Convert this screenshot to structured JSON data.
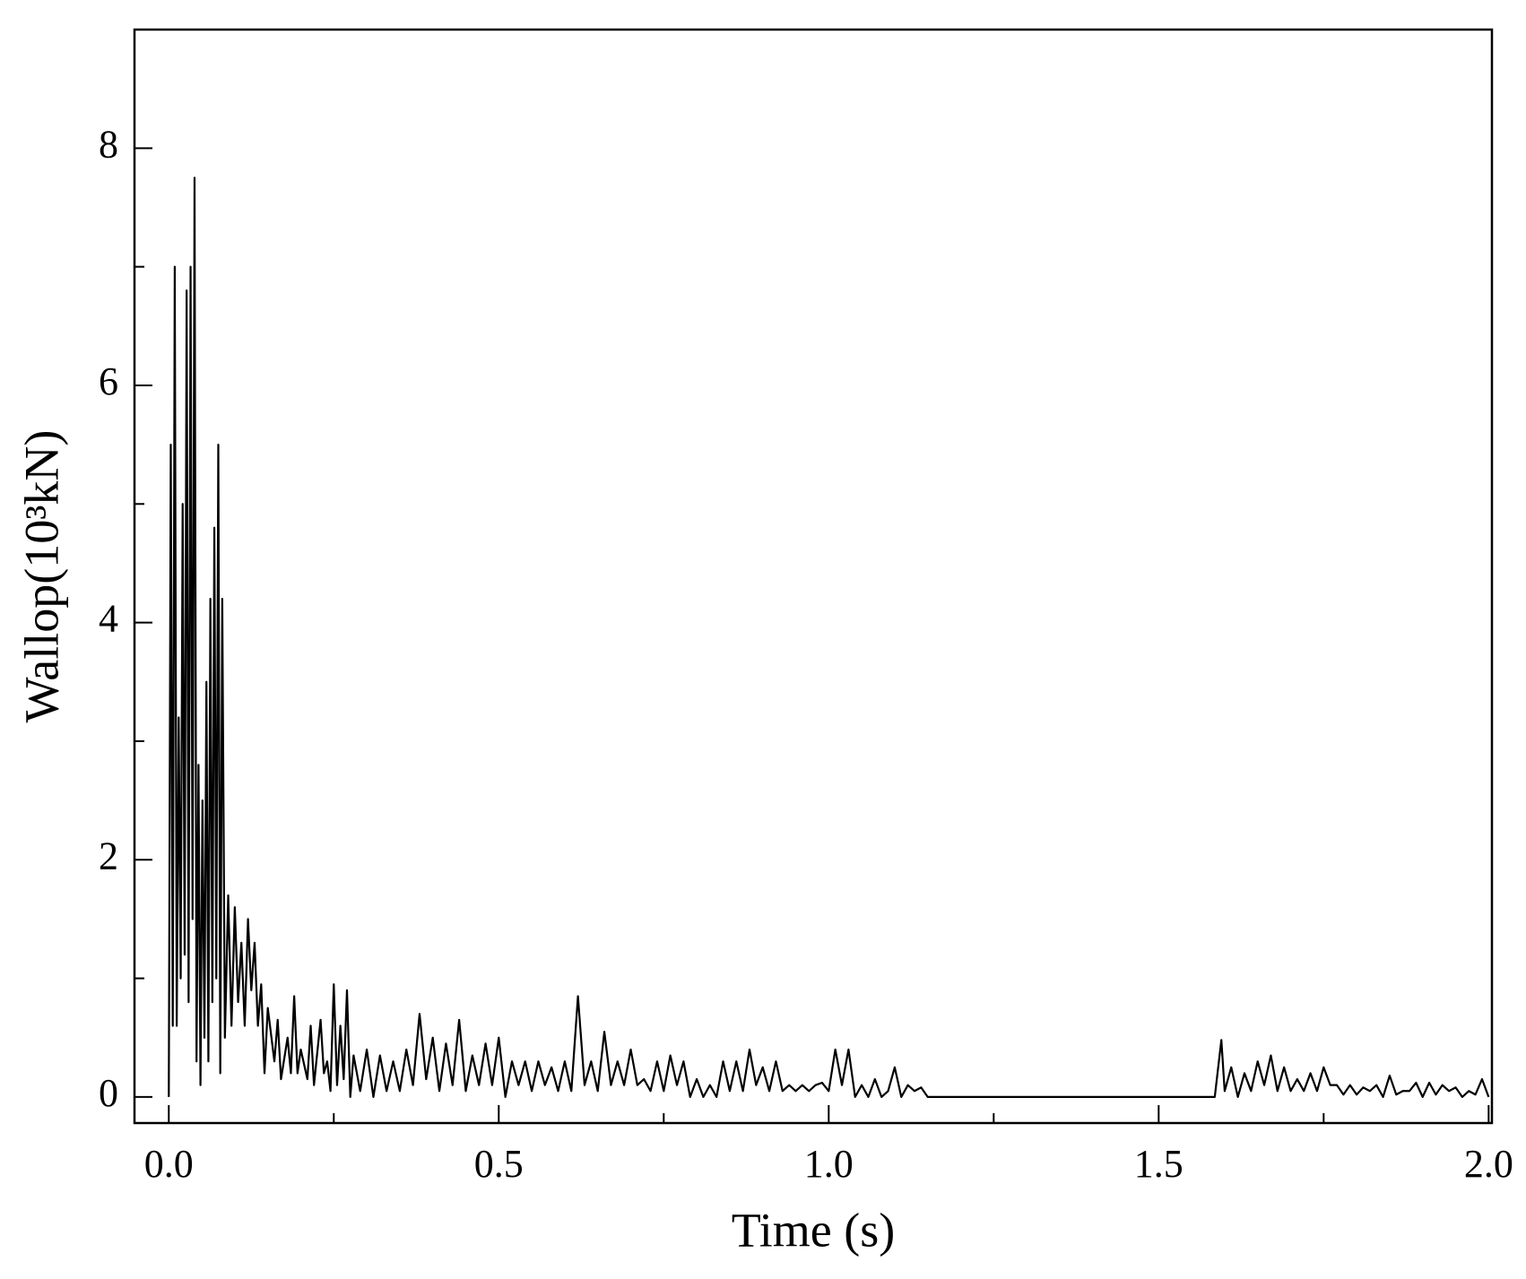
{
  "chart_data": {
    "type": "line",
    "xlabel": "Time (s)",
    "ylabel": "Wallop(10³kN)",
    "color": "#000000",
    "xlim": [
      -0.052,
      2.005
    ],
    "ylim": [
      -0.22,
      9.0
    ],
    "xticks": [
      {
        "value": 0,
        "label": "0.0"
      },
      0.5,
      {
        "value": 1,
        "label": "1.0"
      },
      1.5,
      {
        "value": 2,
        "label": "2.0"
      }
    ],
    "xticks_minor": [
      0.25,
      0.75,
      1.25,
      1.75
    ],
    "yticks": [
      0,
      2,
      4,
      6,
      8
    ],
    "yticks_minor": [
      1,
      3,
      5,
      7
    ],
    "x": [
      0,
      0.003,
      0.006,
      0.009,
      0.012,
      0.015,
      0.018,
      0.021,
      0.024,
      0.027,
      0.03,
      0.033,
      0.036,
      0.039,
      0.042,
      0.045,
      0.048,
      0.051,
      0.054,
      0.057,
      0.06,
      0.063,
      0.066,
      0.069,
      0.072,
      0.075,
      0.078,
      0.081,
      0.085,
      0.09,
      0.095,
      0.1,
      0.105,
      0.11,
      0.115,
      0.12,
      0.125,
      0.13,
      0.135,
      0.14,
      0.145,
      0.15,
      0.16,
      0.165,
      0.17,
      0.18,
      0.185,
      0.19,
      0.195,
      0.2,
      0.21,
      0.215,
      0.22,
      0.23,
      0.235,
      0.24,
      0.245,
      0.25,
      0.255,
      0.26,
      0.265,
      0.27,
      0.275,
      0.28,
      0.29,
      0.3,
      0.31,
      0.32,
      0.33,
      0.34,
      0.35,
      0.36,
      0.37,
      0.38,
      0.39,
      0.4,
      0.41,
      0.42,
      0.43,
      0.44,
      0.45,
      0.46,
      0.47,
      0.48,
      0.49,
      0.5,
      0.51,
      0.52,
      0.53,
      0.54,
      0.55,
      0.56,
      0.57,
      0.58,
      0.59,
      0.6,
      0.61,
      0.62,
      0.63,
      0.64,
      0.65,
      0.66,
      0.67,
      0.68,
      0.69,
      0.7,
      0.71,
      0.72,
      0.73,
      0.74,
      0.75,
      0.76,
      0.77,
      0.78,
      0.79,
      0.8,
      0.81,
      0.82,
      0.83,
      0.84,
      0.85,
      0.86,
      0.87,
      0.88,
      0.89,
      0.9,
      0.91,
      0.92,
      0.93,
      0.94,
      0.95,
      0.96,
      0.97,
      0.98,
      0.99,
      1.0,
      1.01,
      1.02,
      1.03,
      1.04,
      1.05,
      1.06,
      1.07,
      1.08,
      1.09,
      1.1,
      1.11,
      1.12,
      1.13,
      1.14,
      1.15,
      1.585,
      1.595,
      1.6,
      1.61,
      1.62,
      1.63,
      1.64,
      1.65,
      1.66,
      1.67,
      1.68,
      1.69,
      1.7,
      1.71,
      1.72,
      1.73,
      1.74,
      1.75,
      1.76,
      1.77,
      1.78,
      1.79,
      1.8,
      1.81,
      1.82,
      1.83,
      1.84,
      1.85,
      1.86,
      1.87,
      1.88,
      1.89,
      1.9,
      1.91,
      1.92,
      1.93,
      1.94,
      1.95,
      1.96,
      1.97,
      1.98,
      1.99,
      2.0
    ],
    "values": [
      0,
      5.5,
      0.6,
      7.0,
      0.6,
      3.2,
      1.0,
      5.0,
      1.2,
      6.8,
      0.8,
      7.0,
      1.5,
      7.75,
      0.3,
      2.8,
      0.1,
      2.5,
      0.5,
      3.5,
      0.3,
      4.2,
      0.8,
      4.8,
      1.0,
      5.5,
      0.2,
      4.2,
      0.5,
      1.7,
      0.6,
      1.6,
      0.8,
      1.3,
      0.6,
      1.5,
      0.9,
      1.3,
      0.6,
      0.95,
      0.2,
      0.75,
      0.3,
      0.65,
      0.15,
      0.5,
      0.2,
      0.85,
      0.2,
      0.4,
      0.15,
      0.6,
      0.1,
      0.65,
      0.2,
      0.3,
      0.05,
      0.95,
      0.1,
      0.6,
      0.15,
      0.9,
      0.0,
      0.35,
      0.05,
      0.4,
      0.0,
      0.35,
      0.05,
      0.3,
      0.05,
      0.4,
      0.1,
      0.7,
      0.15,
      0.5,
      0.05,
      0.45,
      0.1,
      0.65,
      0.05,
      0.35,
      0.1,
      0.45,
      0.1,
      0.5,
      0.0,
      0.3,
      0.1,
      0.3,
      0.05,
      0.3,
      0.1,
      0.25,
      0.05,
      0.3,
      0.05,
      0.85,
      0.1,
      0.3,
      0.05,
      0.55,
      0.1,
      0.3,
      0.1,
      0.4,
      0.1,
      0.15,
      0.05,
      0.3,
      0.05,
      0.35,
      0.1,
      0.3,
      0.0,
      0.15,
      0.0,
      0.1,
      0.0,
      0.3,
      0.05,
      0.3,
      0.05,
      0.4,
      0.1,
      0.25,
      0.05,
      0.3,
      0.05,
      0.1,
      0.05,
      0.1,
      0.05,
      0.1,
      0.12,
      0.05,
      0.4,
      0.1,
      0.4,
      0.0,
      0.1,
      0.0,
      0.15,
      0.0,
      0.05,
      0.25,
      0.0,
      0.1,
      0.05,
      0.08,
      0.0,
      0.0,
      0.48,
      0.05,
      0.25,
      0.0,
      0.2,
      0.05,
      0.3,
      0.1,
      0.35,
      0.05,
      0.25,
      0.05,
      0.15,
      0.05,
      0.2,
      0.05,
      0.25,
      0.1,
      0.1,
      0.02,
      0.1,
      0.02,
      0.08,
      0.05,
      0.1,
      0.0,
      0.18,
      0.02,
      0.05,
      0.05,
      0.12,
      0.0,
      0.12,
      0.02,
      0.1,
      0.05,
      0.08,
      0.0,
      0.05,
      0.02,
      0.15,
      0.0
    ]
  }
}
